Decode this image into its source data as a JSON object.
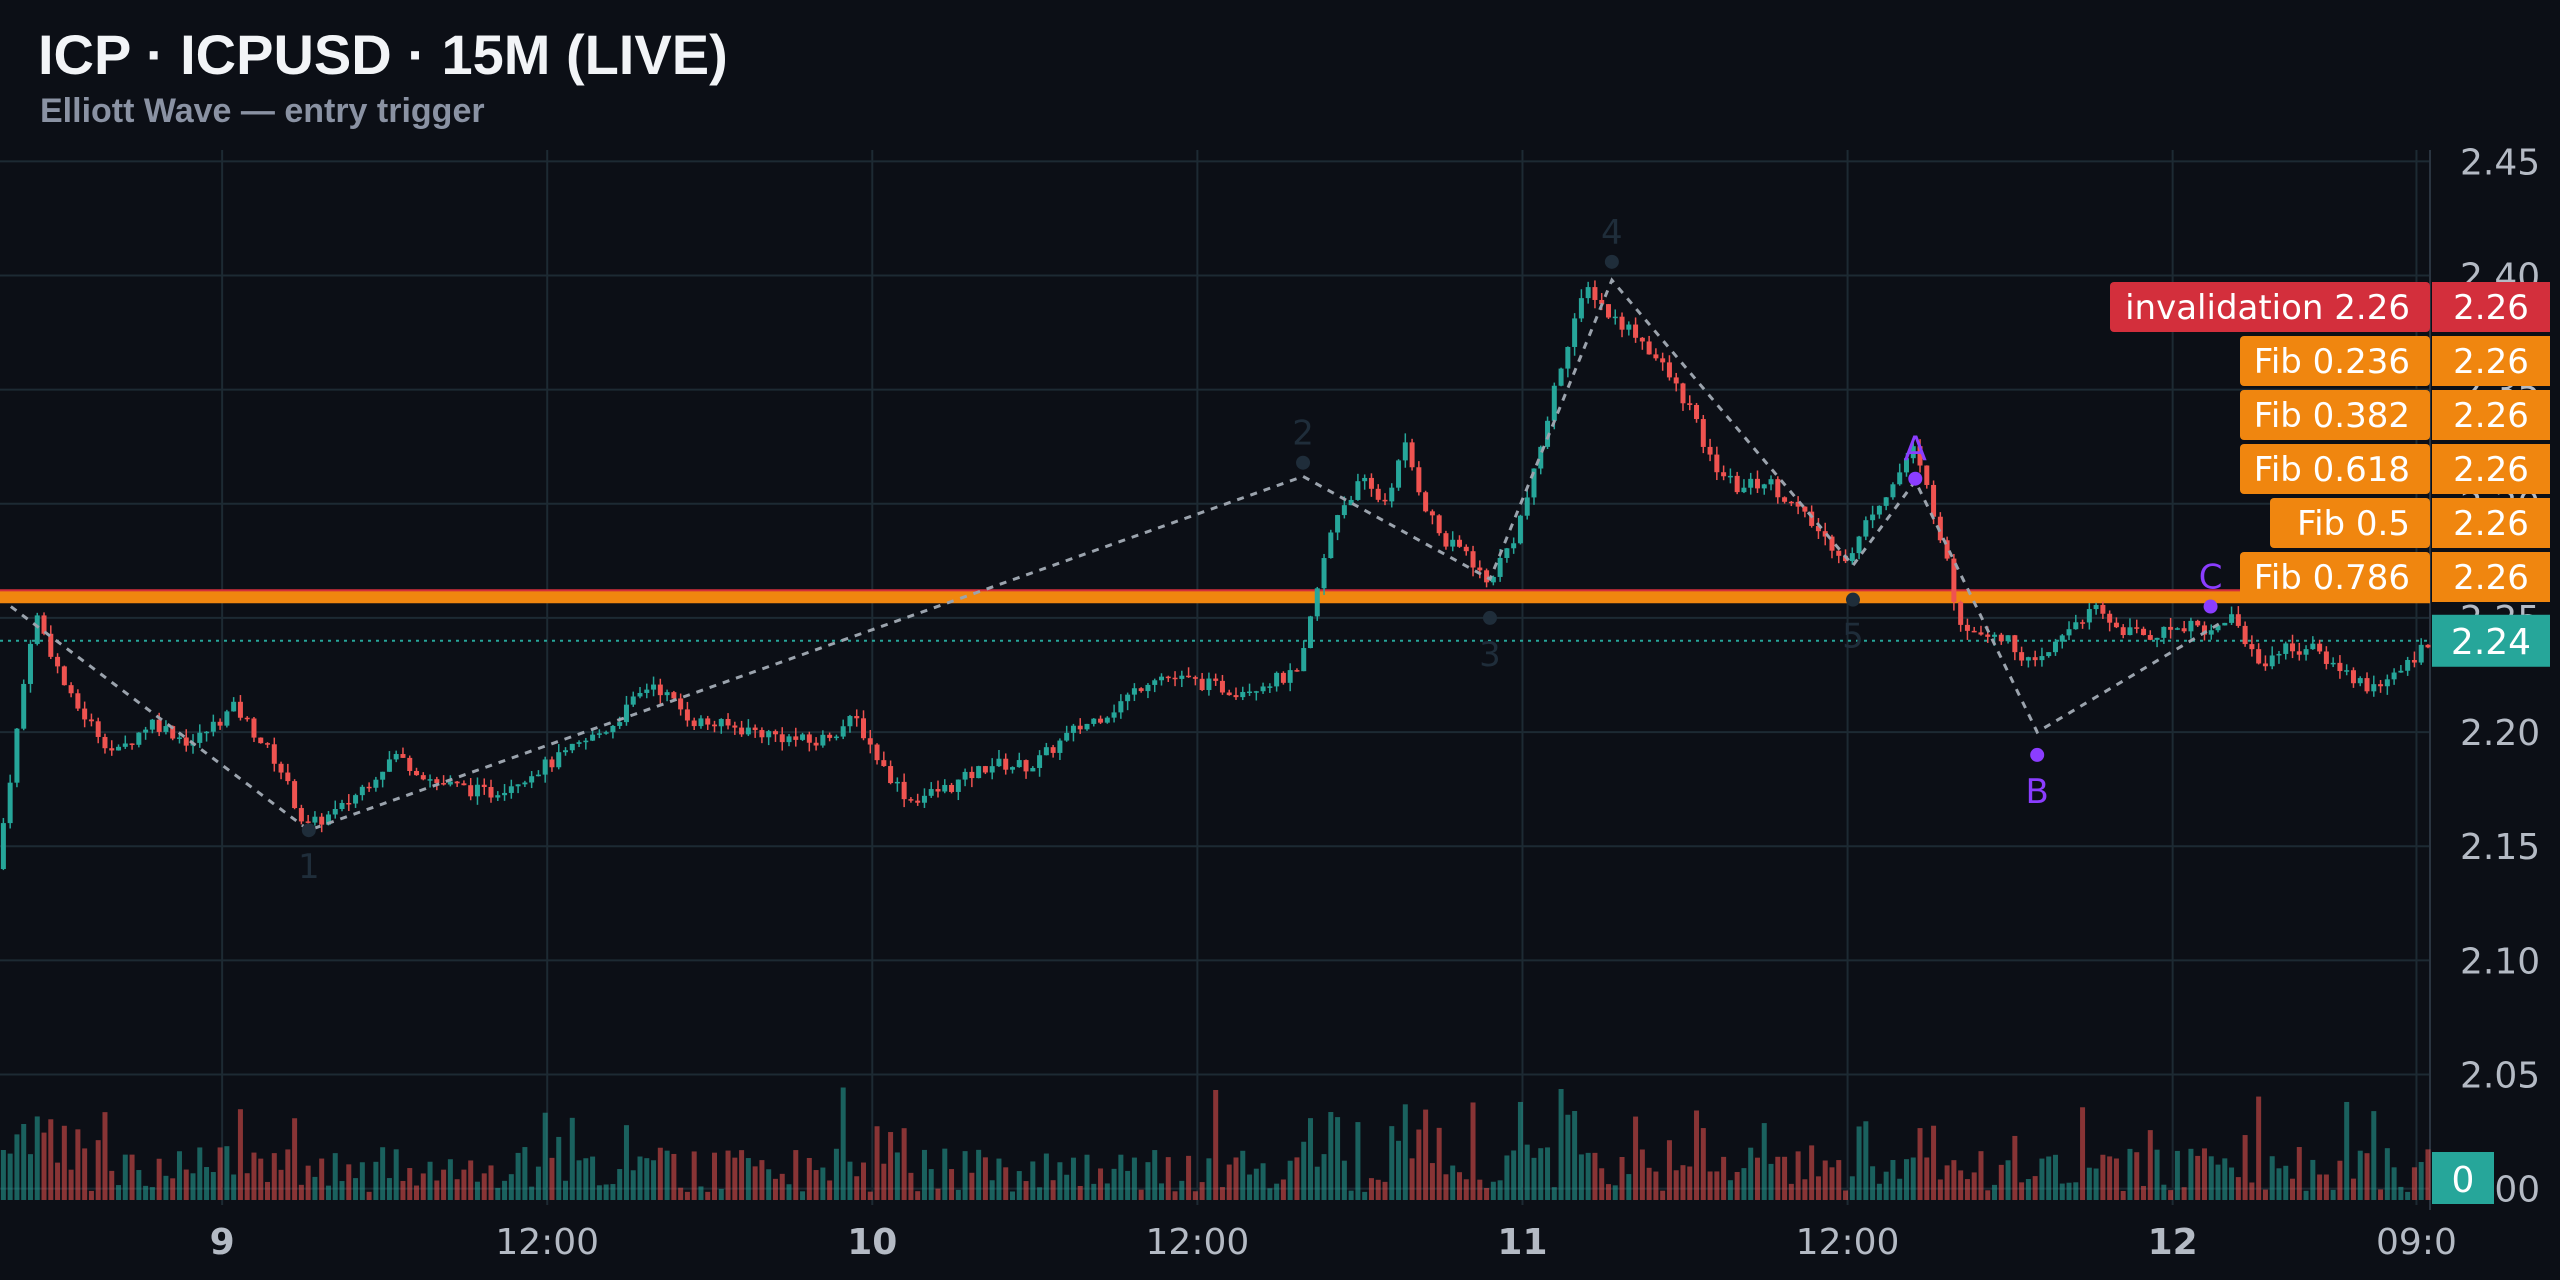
{
  "header": {
    "title": "ICP · ICPUSD · 15M (LIVE)",
    "subtitle": "Elliott Wave — entry trigger"
  },
  "colors": {
    "background": "#0c0f16",
    "grid": "#1d2a33",
    "up": "#26a69a",
    "down": "#ef5350",
    "fib": "#f0860f",
    "invalidation": "#d32f3c",
    "wave_label": "#8b3dff",
    "wave_label_dim": "#1f2d3a",
    "wave_line": "#9ba3ad",
    "axis_text": "#b4bac4",
    "last_price_tag": "#26a69a"
  },
  "chart_data": {
    "type": "candlestick",
    "interval": "15M",
    "ylim": [
      1.995,
      2.455
    ],
    "yticks": [
      "2.45",
      "2.40",
      "2.35",
      "2.30",
      "2.25",
      "2.20",
      "2.15",
      "2.10",
      "2.05",
      "2.00"
    ],
    "ytick_values": [
      2.45,
      2.4,
      2.35,
      2.3,
      2.25,
      2.2,
      2.15,
      2.1,
      2.05,
      2.0
    ],
    "xticks": [
      "9",
      "12:00",
      "10",
      "12:00",
      "11",
      "12:00",
      "12",
      "09:0"
    ],
    "xtick_hours": [
      24,
      36,
      48,
      60,
      72,
      84,
      96,
      105
    ],
    "x_range_hours": [
      15.8,
      105.5
    ],
    "last_price": 2.24,
    "last_price_label": "2.24",
    "volume_label": "0",
    "price_path": [
      [
        15.8,
        2.14
      ],
      [
        17.2,
        2.253
      ],
      [
        18.5,
        2.215
      ],
      [
        20.2,
        2.19
      ],
      [
        21.5,
        2.205
      ],
      [
        23.0,
        2.195
      ],
      [
        24.6,
        2.211
      ],
      [
        26.2,
        2.186
      ],
      [
        27.2,
        2.158
      ],
      [
        28.5,
        2.166
      ],
      [
        30.5,
        2.19
      ],
      [
        32.0,
        2.178
      ],
      [
        34.0,
        2.173
      ],
      [
        36.5,
        2.188
      ],
      [
        38.5,
        2.203
      ],
      [
        40.0,
        2.222
      ],
      [
        41.5,
        2.205
      ],
      [
        44.0,
        2.2
      ],
      [
        46.0,
        2.195
      ],
      [
        47.5,
        2.206
      ],
      [
        48.5,
        2.185
      ],
      [
        49.5,
        2.17
      ],
      [
        51.0,
        2.176
      ],
      [
        52.5,
        2.186
      ],
      [
        54.0,
        2.185
      ],
      [
        55.5,
        2.2
      ],
      [
        57.0,
        2.21
      ],
      [
        58.5,
        2.225
      ],
      [
        60.0,
        2.222
      ],
      [
        61.5,
        2.218
      ],
      [
        63.0,
        2.223
      ],
      [
        63.9,
        2.225
      ],
      [
        64.4,
        2.255
      ],
      [
        65.2,
        2.295
      ],
      [
        66.2,
        2.31
      ],
      [
        67.0,
        2.3
      ],
      [
        67.8,
        2.325
      ],
      [
        68.5,
        2.3
      ],
      [
        69.3,
        2.282
      ],
      [
        70.0,
        2.28
      ],
      [
        70.8,
        2.265
      ],
      [
        71.8,
        2.285
      ],
      [
        72.5,
        2.31
      ],
      [
        73.3,
        2.35
      ],
      [
        74.0,
        2.38
      ],
      [
        74.6,
        2.395
      ],
      [
        75.3,
        2.383
      ],
      [
        76.3,
        2.375
      ],
      [
        77.3,
        2.36
      ],
      [
        78.3,
        2.342
      ],
      [
        79.0,
        2.32
      ],
      [
        80.0,
        2.307
      ],
      [
        81.2,
        2.31
      ],
      [
        82.3,
        2.297
      ],
      [
        83.3,
        2.285
      ],
      [
        84.2,
        2.275
      ],
      [
        85.0,
        2.297
      ],
      [
        85.9,
        2.31
      ],
      [
        86.5,
        2.325
      ],
      [
        87.1,
        2.305
      ],
      [
        87.6,
        2.285
      ],
      [
        88.2,
        2.25
      ],
      [
        88.8,
        2.245
      ],
      [
        89.6,
        2.244
      ],
      [
        90.5,
        2.235
      ],
      [
        91.0,
        2.228
      ],
      [
        91.6,
        2.235
      ],
      [
        92.4,
        2.248
      ],
      [
        93.3,
        2.253
      ],
      [
        94.2,
        2.245
      ],
      [
        95.2,
        2.242
      ],
      [
        96.0,
        2.245
      ],
      [
        96.8,
        2.248
      ],
      [
        97.6,
        2.243
      ],
      [
        98.2,
        2.252
      ],
      [
        98.6,
        2.245
      ],
      [
        99.3,
        2.23
      ],
      [
        100.3,
        2.237
      ],
      [
        101.3,
        2.236
      ],
      [
        102.3,
        2.228
      ],
      [
        103.3,
        2.22
      ],
      [
        104.3,
        2.224
      ],
      [
        105.0,
        2.232
      ],
      [
        105.5,
        2.24
      ]
    ],
    "horizontal_levels": [
      {
        "name": "invalidation",
        "label": "invalidation 2.26",
        "value": 2.26,
        "value_label": "2.26",
        "color": "#d32f3c"
      },
      {
        "name": "fib-0236",
        "label": "Fib 0.236",
        "value": 2.26,
        "value_label": "2.26",
        "color": "#f0860f"
      },
      {
        "name": "fib-0382",
        "label": "Fib 0.382",
        "value": 2.26,
        "value_label": "2.26",
        "color": "#f0860f"
      },
      {
        "name": "fib-0618",
        "label": "Fib 0.618",
        "value": 2.26,
        "value_label": "2.26",
        "color": "#f0860f"
      },
      {
        "name": "fib-05",
        "label": "Fib 0.5",
        "value": 2.26,
        "value_label": "2.26",
        "color": "#f0860f"
      },
      {
        "name": "fib-0786",
        "label": "Fib 0.786",
        "value": 2.26,
        "value_label": "2.26",
        "color": "#f0860f"
      }
    ],
    "wave_path": [
      [
        16.2,
        2.255
      ],
      [
        27.2,
        2.157
      ],
      [
        63.9,
        2.312
      ],
      [
        70.8,
        2.267
      ],
      [
        75.3,
        2.398
      ],
      [
        84.2,
        2.273
      ],
      [
        86.5,
        2.31
      ],
      [
        91.0,
        2.2
      ],
      [
        97.8,
        2.248
      ]
    ],
    "wave_labels": [
      {
        "label": "1",
        "x": 27.2,
        "y": 2.157,
        "position": "below",
        "dim": true
      },
      {
        "label": "2",
        "x": 63.9,
        "y": 2.318,
        "position": "above",
        "dim": true
      },
      {
        "label": "3",
        "x": 70.8,
        "y": 2.25,
        "position": "below",
        "dim": true
      },
      {
        "label": "4",
        "x": 75.3,
        "y": 2.406,
        "position": "above",
        "dim": true
      },
      {
        "label": "5",
        "x": 84.2,
        "y": 2.258,
        "position": "below",
        "dim": true
      },
      {
        "label": "A",
        "x": 86.5,
        "y": 2.311,
        "position": "above",
        "dim": false
      },
      {
        "label": "B",
        "x": 91.0,
        "y": 2.19,
        "position": "below",
        "dim": false
      },
      {
        "label": "C",
        "x": 97.4,
        "y": 2.255,
        "position": "above",
        "dim": false
      }
    ]
  }
}
